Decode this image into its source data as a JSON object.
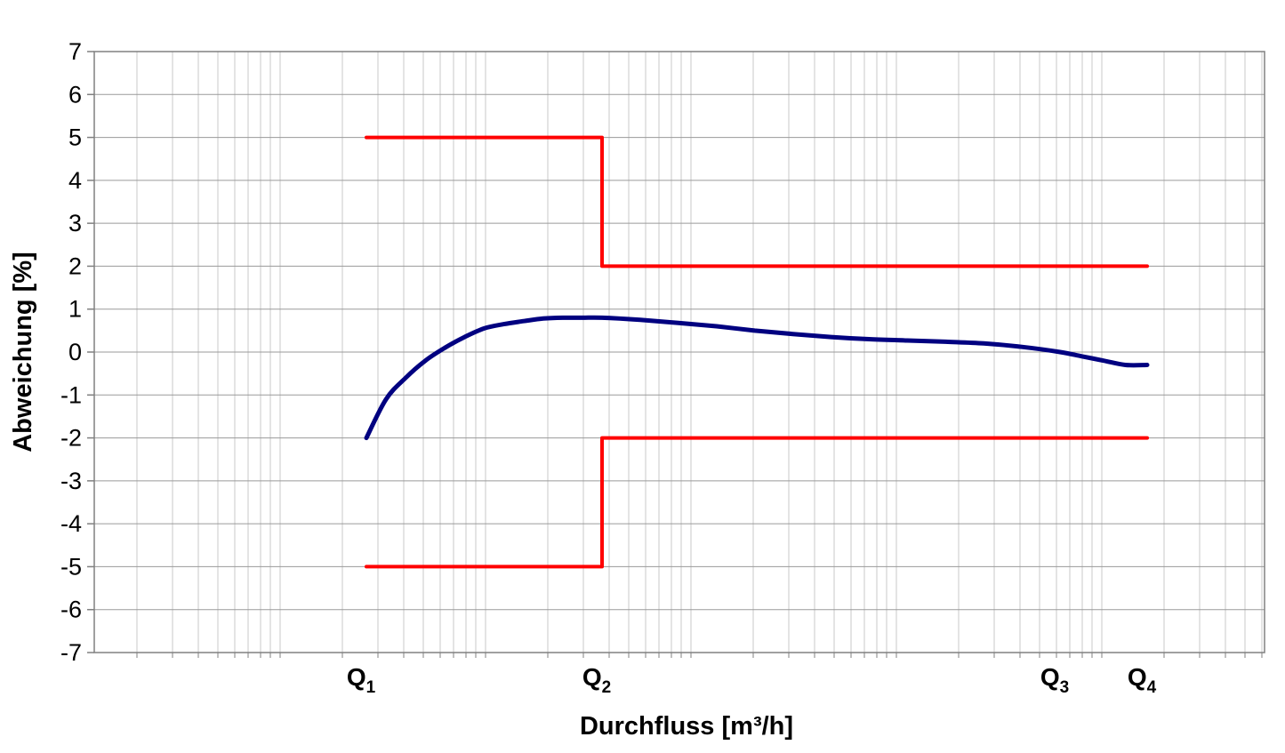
{
  "chart_data": {
    "type": "line",
    "title": "",
    "xlabel": "Durchfluss [m³/h]",
    "ylabel": "Abweichung [%]",
    "xscale": "log",
    "ylim": [
      -7,
      7
    ],
    "yticks": [
      "7",
      "6",
      "5",
      "4",
      "3",
      "2",
      "1",
      "0",
      "-1",
      "-2",
      "-3",
      "-4",
      "-5",
      "-6",
      "-7"
    ],
    "grid": true,
    "legend": "none",
    "x_markers": [
      {
        "base": "Q",
        "sub": "1"
      },
      {
        "base": "Q",
        "sub": "2"
      },
      {
        "base": "Q",
        "sub": "3"
      },
      {
        "base": "Q",
        "sub": "4"
      }
    ],
    "series": [
      {
        "color": "#ff0000",
        "points": [
          [
            "Q1",
            5
          ],
          [
            "Q2",
            5
          ],
          [
            "Q2",
            2
          ],
          [
            "Q4",
            2
          ]
        ]
      },
      {
        "color": "#ff0000",
        "points": [
          [
            "Q1",
            -5
          ],
          [
            "Q2",
            -5
          ],
          [
            "Q2",
            -2
          ],
          [
            "Q4",
            -2
          ]
        ]
      },
      {
        "color": "#000080",
        "points": [
          [
            "Q1",
            -2.0
          ],
          [
            "",
            -1.1
          ],
          [
            "",
            -0.6
          ],
          [
            "",
            -0.2
          ],
          [
            "",
            0.1
          ],
          [
            "",
            0.35
          ],
          [
            "",
            0.55
          ],
          [
            "",
            0.65
          ],
          [
            "",
            0.72
          ],
          [
            "",
            0.78
          ],
          [
            "",
            0.8
          ],
          [
            "",
            0.8
          ],
          [
            "Q2",
            0.8
          ],
          [
            "",
            0.75
          ],
          [
            "",
            0.68
          ],
          [
            "",
            0.6
          ],
          [
            "",
            0.5
          ],
          [
            "",
            0.42
          ],
          [
            "",
            0.35
          ],
          [
            "",
            0.3
          ],
          [
            "",
            0.27
          ],
          [
            "",
            0.24
          ],
          [
            "",
            0.2
          ],
          [
            "",
            0.12
          ],
          [
            "Q3",
            0.0
          ],
          [
            "",
            -0.1
          ],
          [
            "",
            -0.2
          ],
          [
            "",
            -0.3
          ],
          [
            "Q4",
            -0.3
          ]
        ]
      }
    ]
  }
}
